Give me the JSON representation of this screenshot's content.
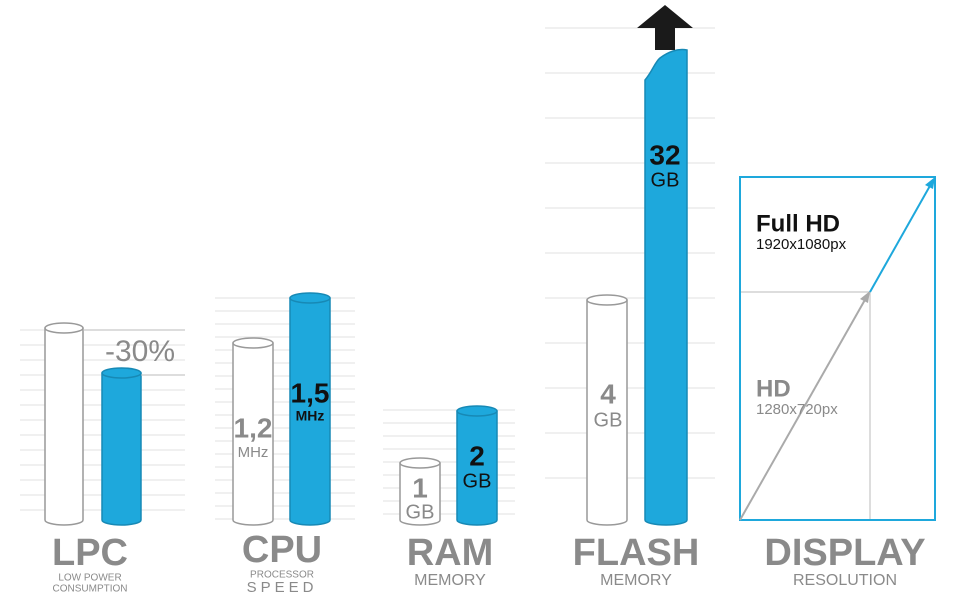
{
  "lpc": {
    "title": "LPC",
    "subtitle": [
      "LOW POWER",
      "CONSUMPTION"
    ],
    "note": "-30%"
  },
  "cpu": {
    "title": "CPU",
    "subtitle": [
      "PROCESSOR",
      "SPEED"
    ],
    "old": {
      "value": "1,2",
      "unit": "MHz"
    },
    "new": {
      "value": "1,5",
      "unit": "MHz"
    }
  },
  "ram": {
    "title": "RAM",
    "subtitle": "MEMORY",
    "old": {
      "value": "1",
      "unit": "GB"
    },
    "new": {
      "value": "2",
      "unit": "GB"
    }
  },
  "flash": {
    "title": "FLASH",
    "subtitle": "MEMORY",
    "old": {
      "value": "4",
      "unit": "GB"
    },
    "new": {
      "value": "32",
      "unit": "GB"
    }
  },
  "display": {
    "title": "DISPLAY",
    "subtitle": "RESOLUTION",
    "old": {
      "name": "HD",
      "resolution": "1280x720px"
    },
    "new": {
      "name": "Full HD",
      "resolution": "1920x1080px"
    }
  }
}
